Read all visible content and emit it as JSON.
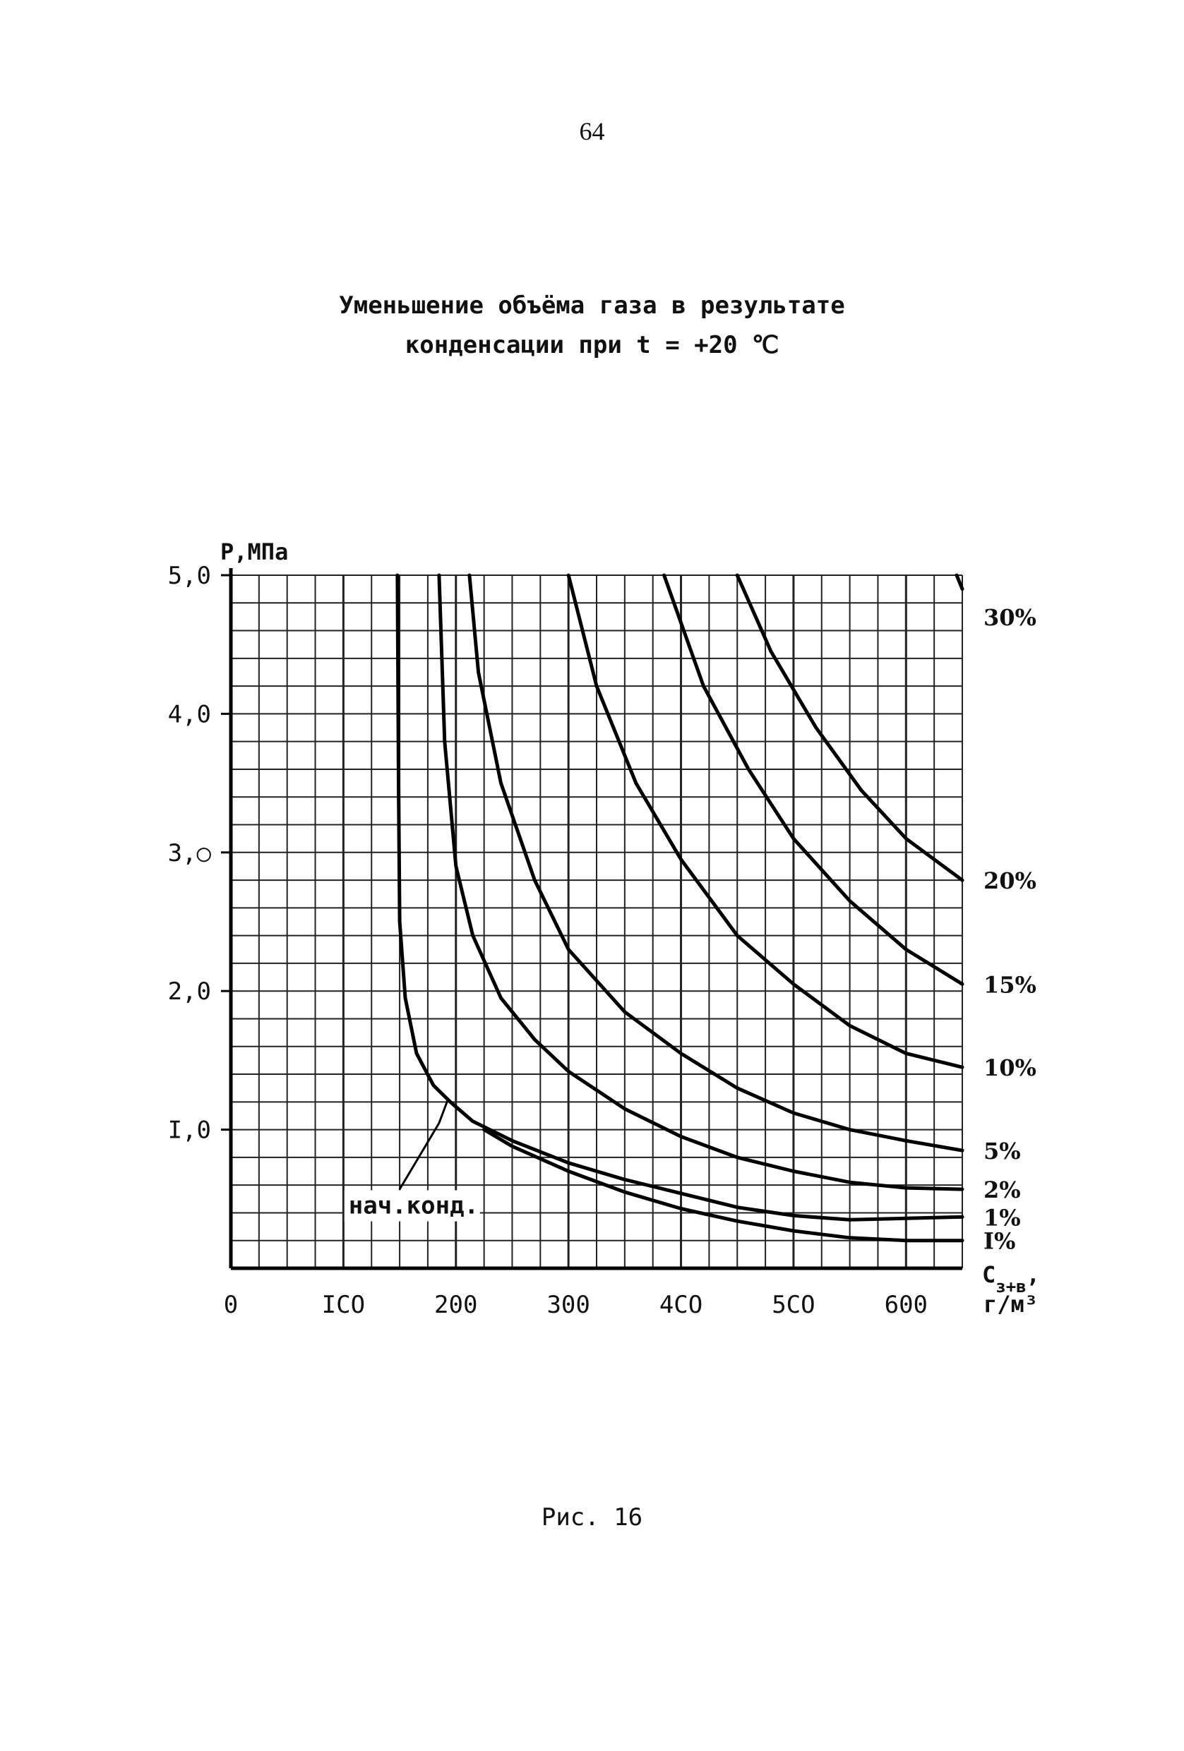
{
  "page": {
    "number": "64",
    "title_line1": "Уменьшение объёма газа в результате",
    "title_line2": "конденсации при t = +20 ℃",
    "caption": "Рис. 16"
  },
  "chart_data": {
    "type": "line",
    "ylabel": "Р,МПа",
    "xlabel_line1": "С",
    "xlabel_sub": "з+в",
    "xlabel_comma": ",",
    "xlabel_line2": "г/м³",
    "xlim": [
      0,
      650
    ],
    "ylim": [
      0,
      5.0
    ],
    "grid": true,
    "x_ticks": [
      {
        "value": 0,
        "label": "0"
      },
      {
        "value": 100,
        "label": "ICO"
      },
      {
        "value": 200,
        "label": "200"
      },
      {
        "value": 300,
        "label": "300"
      },
      {
        "value": 400,
        "label": "4CO"
      },
      {
        "value": 500,
        "label": "5CO"
      },
      {
        "value": 600,
        "label": "600"
      }
    ],
    "y_ticks": [
      {
        "value": 1.0,
        "label": "I,0"
      },
      {
        "value": 2.0,
        "label": "2,0"
      },
      {
        "value": 3.0,
        "label": "3,○"
      },
      {
        "value": 4.0,
        "label": "4,0"
      },
      {
        "value": 5.0,
        "label": "5,0"
      }
    ],
    "annotation": {
      "text": "нач.конд.",
      "x": 195,
      "y": 1.25
    },
    "series": [
      {
        "name": "30%",
        "label_y": 4.7,
        "points": [
          [
            645,
            5.0
          ],
          [
            650,
            4.9
          ]
        ]
      },
      {
        "name": "20%",
        "label_y": 2.8,
        "points": [
          [
            450,
            5.0
          ],
          [
            480,
            4.45
          ],
          [
            520,
            3.9
          ],
          [
            560,
            3.45
          ],
          [
            600,
            3.1
          ],
          [
            650,
            2.8
          ]
        ]
      },
      {
        "name": "15%",
        "label_y": 2.05,
        "points": [
          [
            385,
            5.0
          ],
          [
            420,
            4.2
          ],
          [
            460,
            3.6
          ],
          [
            500,
            3.1
          ],
          [
            550,
            2.65
          ],
          [
            600,
            2.3
          ],
          [
            650,
            2.05
          ]
        ]
      },
      {
        "name": "10%",
        "label_y": 1.45,
        "points": [
          [
            300,
            5.0
          ],
          [
            325,
            4.2
          ],
          [
            360,
            3.5
          ],
          [
            400,
            2.95
          ],
          [
            450,
            2.4
          ],
          [
            500,
            2.05
          ],
          [
            550,
            1.75
          ],
          [
            600,
            1.55
          ],
          [
            650,
            1.45
          ]
        ]
      },
      {
        "name": "5%",
        "label_y": 0.85,
        "points": [
          [
            212,
            5.0
          ],
          [
            220,
            4.3
          ],
          [
            240,
            3.5
          ],
          [
            270,
            2.8
          ],
          [
            300,
            2.3
          ],
          [
            350,
            1.85
          ],
          [
            400,
            1.55
          ],
          [
            450,
            1.3
          ],
          [
            500,
            1.12
          ],
          [
            550,
            1.0
          ],
          [
            600,
            0.92
          ],
          [
            650,
            0.85
          ]
        ]
      },
      {
        "name": "2%",
        "label_y": 0.57,
        "points": [
          [
            185,
            5.0
          ],
          [
            190,
            3.8
          ],
          [
            200,
            2.9
          ],
          [
            215,
            2.4
          ],
          [
            240,
            1.95
          ],
          [
            270,
            1.65
          ],
          [
            300,
            1.42
          ],
          [
            350,
            1.15
          ],
          [
            400,
            0.95
          ],
          [
            450,
            0.8
          ],
          [
            500,
            0.7
          ],
          [
            550,
            0.62
          ],
          [
            600,
            0.58
          ],
          [
            650,
            0.57
          ]
        ]
      },
      {
        "name": "1%",
        "label_y": 0.37,
        "points": [
          [
            148,
            5.0
          ],
          [
            149,
            3.5
          ],
          [
            150,
            2.5
          ],
          [
            155,
            1.95
          ],
          [
            165,
            1.55
          ],
          [
            180,
            1.32
          ],
          [
            195,
            1.2
          ],
          [
            215,
            1.06
          ],
          [
            250,
            0.92
          ],
          [
            300,
            0.76
          ],
          [
            350,
            0.64
          ],
          [
            400,
            0.54
          ],
          [
            450,
            0.44
          ],
          [
            500,
            0.38
          ],
          [
            550,
            0.35
          ],
          [
            600,
            0.36
          ],
          [
            650,
            0.37
          ]
        ]
      },
      {
        "name": "I%",
        "label_y": 0.2,
        "points": [
          [
            225,
            1.0
          ],
          [
            250,
            0.88
          ],
          [
            300,
            0.7
          ],
          [
            350,
            0.55
          ],
          [
            400,
            0.43
          ],
          [
            450,
            0.34
          ],
          [
            500,
            0.27
          ],
          [
            550,
            0.22
          ],
          [
            600,
            0.2
          ],
          [
            650,
            0.2
          ]
        ]
      }
    ]
  }
}
